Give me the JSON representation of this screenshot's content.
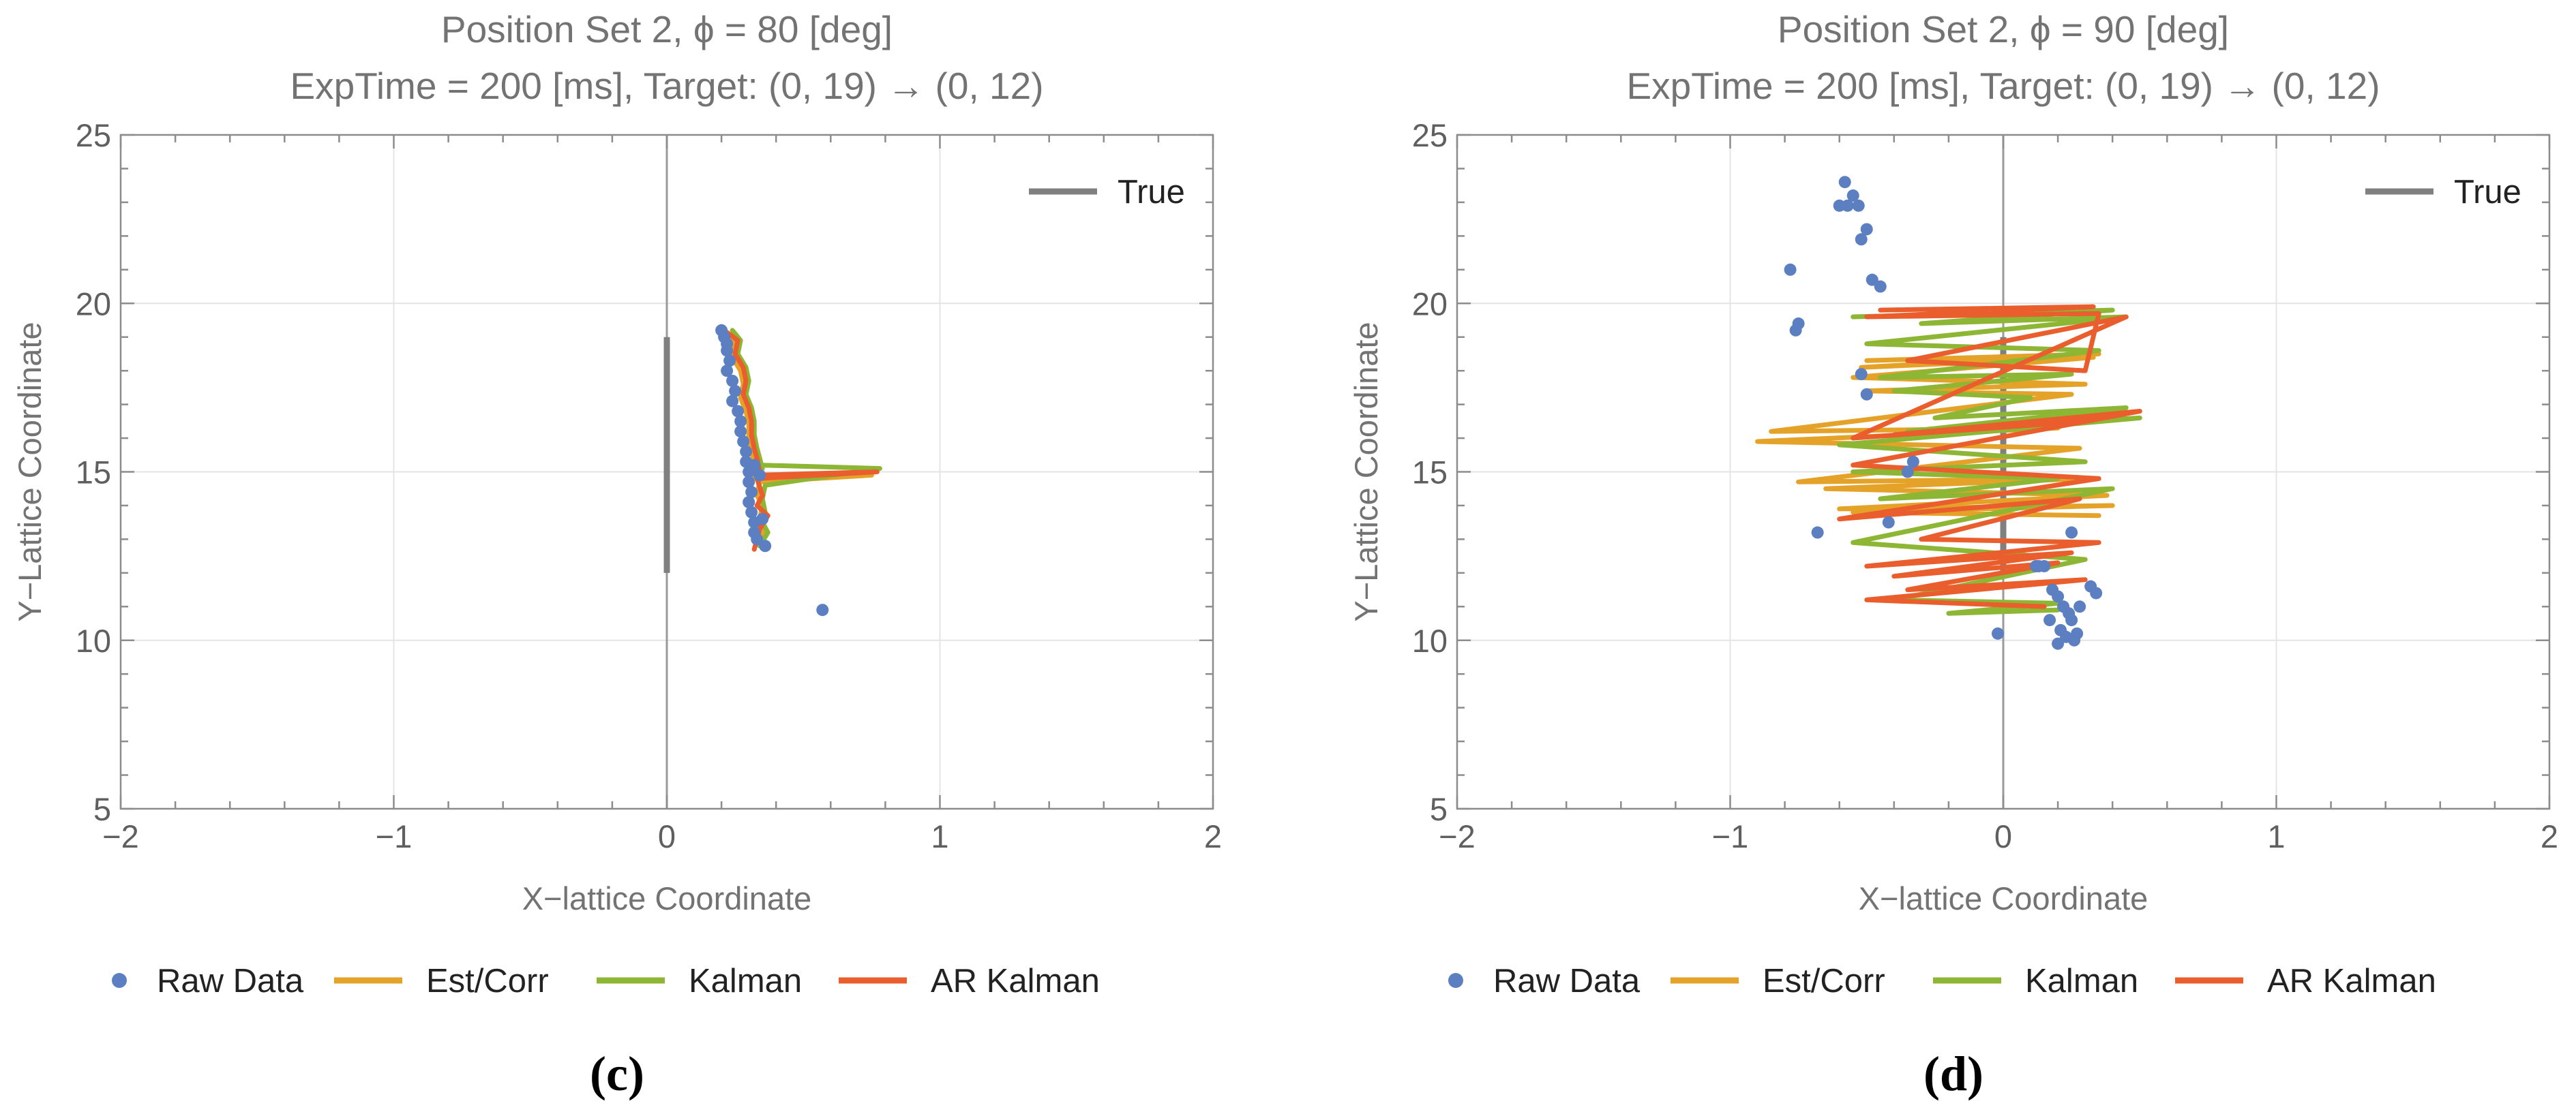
{
  "colors": {
    "raw": "#5b7fc0",
    "estcorr": "#e5a228",
    "kalman": "#8db634",
    "arkalman": "#ea5d2c",
    "true": "#808080",
    "grid": "#e4e4e4",
    "frame": "#8c8c8c",
    "zeroline": "#9a9a9a"
  },
  "chart_data": [
    {
      "type": "scatter",
      "panel_label": "(c)",
      "title": "Position Set 2, ϕ = 80 [deg]",
      "subtitle": "ExpTime = 200 [ms], Target: (0, 19) → (0, 12)",
      "xlabel": "X−lattice Coordinate",
      "ylabel": "Y−Lattice Coordinate",
      "xlim": [
        -2,
        2
      ],
      "ylim": [
        5,
        25
      ],
      "xticks": [
        -2,
        -1,
        0,
        1,
        2
      ],
      "xtick_labels": [
        "−2",
        "−1",
        "0",
        "1",
        "2"
      ],
      "yticks": [
        5,
        10,
        15,
        20,
        25
      ],
      "ytick_labels": [
        "5",
        "10",
        "15",
        "20",
        "25"
      ],
      "grid": true,
      "legend_inset": {
        "position": "top-right",
        "label": "True"
      },
      "legend_bottom": [
        "Raw Data",
        "Est/Corr",
        "Kalman",
        "AR Kalman"
      ],
      "true_path": {
        "x": [
          0,
          0
        ],
        "y": [
          12,
          19
        ]
      },
      "series": [
        {
          "name": "Raw Data",
          "kind": "scatter",
          "x": [
            0.2,
            0.21,
            0.22,
            0.22,
            0.23,
            0.22,
            0.24,
            0.25,
            0.24,
            0.26,
            0.27,
            0.27,
            0.28,
            0.29,
            0.29,
            0.3,
            0.3,
            0.31,
            0.3,
            0.31,
            0.32,
            0.32,
            0.33,
            0.32,
            0.34,
            0.35,
            0.36,
            0.57
          ],
          "y": [
            19.2,
            19.0,
            18.8,
            18.6,
            18.3,
            18.0,
            17.7,
            17.4,
            17.1,
            16.8,
            16.5,
            16.2,
            15.9,
            15.6,
            15.3,
            15.0,
            14.7,
            14.4,
            14.1,
            13.8,
            13.5,
            13.2,
            13.0,
            15.2,
            14.9,
            13.6,
            12.8,
            10.9
          ]
        },
        {
          "name": "Est/Corr",
          "kind": "line",
          "x": [
            0.22,
            0.25,
            0.24,
            0.27,
            0.28,
            0.27,
            0.29,
            0.3,
            0.3,
            0.31,
            0.32,
            0.33,
            0.32,
            0.75,
            0.34,
            0.33,
            0.35,
            0.34,
            0.36,
            0.33
          ],
          "y": [
            19.1,
            18.8,
            18.4,
            18.0,
            17.6,
            17.2,
            16.8,
            16.4,
            16.0,
            15.6,
            15.3,
            15.0,
            14.8,
            14.9,
            14.7,
            14.3,
            14.0,
            13.6,
            13.3,
            12.9
          ]
        },
        {
          "name": "Kalman",
          "kind": "line",
          "x": [
            0.24,
            0.27,
            0.26,
            0.29,
            0.3,
            0.29,
            0.31,
            0.32,
            0.32,
            0.33,
            0.34,
            0.35,
            0.34,
            0.78,
            0.36,
            0.35,
            0.36,
            0.35,
            0.37,
            0.34
          ],
          "y": [
            19.2,
            18.9,
            18.5,
            18.1,
            17.7,
            17.3,
            16.9,
            16.5,
            16.1,
            15.7,
            15.4,
            15.1,
            15.2,
            15.1,
            14.6,
            14.2,
            13.8,
            13.5,
            13.2,
            12.8
          ]
        },
        {
          "name": "AR Kalman",
          "kind": "line",
          "x": [
            0.21,
            0.26,
            0.25,
            0.28,
            0.29,
            0.28,
            0.3,
            0.31,
            0.31,
            0.32,
            0.33,
            0.34,
            0.33,
            0.77,
            0.33,
            0.35,
            0.33,
            0.37,
            0.34,
            0.32
          ],
          "y": [
            19.2,
            18.9,
            18.5,
            18.1,
            17.7,
            17.3,
            16.9,
            16.5,
            16.1,
            15.7,
            15.4,
            15.0,
            14.9,
            15.0,
            14.8,
            14.3,
            14.0,
            13.7,
            13.3,
            12.7
          ]
        }
      ]
    },
    {
      "type": "scatter",
      "panel_label": "(d)",
      "title": "Position Set 2, ϕ = 90 [deg]",
      "subtitle": "ExpTime = 200 [ms], Target: (0, 19) → (0, 12)",
      "xlabel": "X−lattice Coordinate",
      "ylabel": "Y−Lattice Coordinate",
      "xlim": [
        -2,
        2
      ],
      "ylim": [
        5,
        25
      ],
      "xticks": [
        -2,
        -1,
        0,
        1,
        2
      ],
      "xtick_labels": [
        "−2",
        "−1",
        "0",
        "1",
        "2"
      ],
      "yticks": [
        5,
        10,
        15,
        20,
        25
      ],
      "ytick_labels": [
        "5",
        "10",
        "15",
        "20",
        "25"
      ],
      "grid": true,
      "legend_inset": {
        "position": "top-right",
        "label": "True"
      },
      "legend_bottom": [
        "Raw Data",
        "Est/Corr",
        "Kalman",
        "AR Kalman"
      ],
      "true_path": {
        "x": [
          0,
          0
        ],
        "y": [
          12,
          19
        ]
      },
      "series": [
        {
          "name": "Raw Data",
          "kind": "scatter",
          "x": [
            -0.58,
            -0.55,
            -0.6,
            -0.57,
            -0.53,
            -0.52,
            -0.5,
            -0.48,
            -0.45,
            -0.78,
            -0.75,
            -0.76,
            -0.52,
            -0.5,
            -0.68,
            -0.42,
            -0.35,
            -0.33,
            0.12,
            0.15,
            0.18,
            0.2,
            0.22,
            0.24,
            0.25,
            0.21,
            0.26,
            0.32,
            0.34,
            0.23,
            0.2,
            0.17,
            0.28,
            0.27,
            -0.02,
            0.13,
            0.25
          ],
          "y": [
            23.6,
            23.2,
            22.9,
            22.9,
            22.9,
            21.9,
            22.2,
            20.7,
            20.5,
            21.0,
            19.4,
            19.2,
            17.9,
            17.3,
            13.2,
            13.5,
            15.0,
            15.3,
            12.2,
            12.2,
            11.5,
            11.3,
            11.0,
            10.8,
            10.6,
            10.3,
            10.0,
            11.6,
            11.4,
            10.1,
            9.9,
            10.6,
            11.0,
            10.2,
            10.2,
            12.2,
            13.2
          ]
        },
        {
          "name": "Est/Corr",
          "kind": "line",
          "x": [
            -0.5,
            0.35,
            -0.52,
            0.33,
            -0.55,
            0.3,
            -0.5,
            0.25,
            -0.85,
            0.2,
            -0.9,
            0.28,
            -0.75,
            0.3,
            -0.65,
            0.38,
            -0.6,
            0.4,
            -0.55,
            0.35
          ],
          "y": [
            18.3,
            18.5,
            18.1,
            18.4,
            17.8,
            17.6,
            17.4,
            17.3,
            16.2,
            16.3,
            15.9,
            15.7,
            14.7,
            14.8,
            14.5,
            14.3,
            13.9,
            14.0,
            13.8,
            13.7
          ]
        },
        {
          "name": "Kalman",
          "kind": "line",
          "x": [
            -0.55,
            0.4,
            -0.3,
            0.45,
            -0.5,
            0.35,
            -0.45,
            0.25,
            -0.4,
            0.1,
            -0.25,
            0.45,
            -0.35,
            0.5,
            -0.6,
            0.3,
            -0.55,
            0.2,
            -0.45,
            0.4,
            -0.55,
            0.3,
            -0.4,
            0.2,
            -0.2,
            0.2
          ],
          "y": [
            19.6,
            19.8,
            19.4,
            19.6,
            18.8,
            18.6,
            17.8,
            17.9,
            17.4,
            17.2,
            16.6,
            16.9,
            16.2,
            16.6,
            15.8,
            15.3,
            15.0,
            14.8,
            14.2,
            14.5,
            12.9,
            12.4,
            11.2,
            11.1,
            10.8,
            10.9
          ]
        },
        {
          "name": "AR Kalman",
          "kind": "line",
          "x": [
            -0.45,
            0.33,
            -0.5,
            0.35,
            0.3,
            -0.35,
            0.45,
            -0.55,
            0.3,
            -0.4,
            0.5,
            -0.55,
            0.35,
            -0.6,
            0.28,
            -0.3,
            0.35,
            -0.5,
            0.25,
            -0.4,
            0.2,
            -0.35,
            0.3,
            -0.5,
            0.15
          ],
          "y": [
            19.8,
            19.9,
            19.6,
            19.7,
            18.0,
            18.3,
            19.6,
            16.0,
            16.5,
            16.1,
            16.8,
            15.2,
            14.8,
            13.6,
            14.2,
            13.0,
            12.9,
            12.2,
            12.6,
            11.9,
            12.3,
            11.5,
            11.8,
            11.2,
            11.0
          ]
        }
      ]
    }
  ]
}
